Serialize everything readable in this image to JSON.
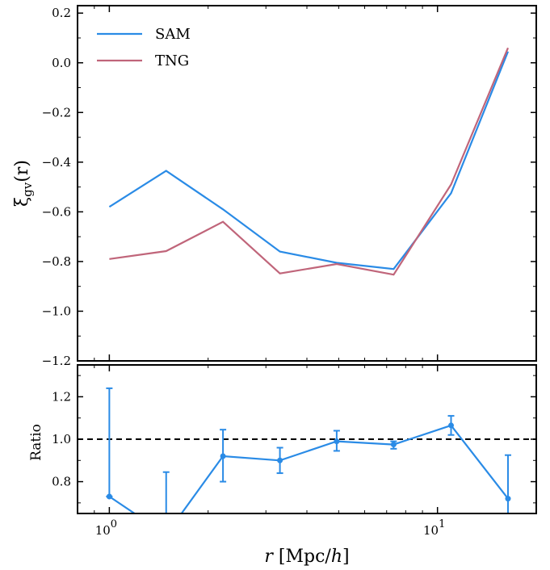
{
  "chart_data": [
    {
      "type": "line",
      "xscale": "log",
      "xlim": [
        0.8,
        20
      ],
      "ylim": [
        -1.2,
        0.23
      ],
      "ylabel": "ξgv(r)",
      "yticks": [
        "0.2",
        "0.0",
        "−0.2",
        "−0.4",
        "−0.6",
        "−0.8",
        "−1.0",
        "−1.2"
      ],
      "ytick_values": [
        0.2,
        0.0,
        -0.2,
        -0.4,
        -0.6,
        -0.8,
        -1.0,
        -1.2
      ],
      "legend_position": "top-left",
      "x": [
        1.0,
        1.49,
        2.22,
        3.31,
        4.93,
        7.35,
        11.0,
        16.4
      ],
      "series": [
        {
          "name": "SAM",
          "color": "#2a8be6",
          "values": [
            -0.58,
            -0.435,
            -0.59,
            -0.76,
            -0.805,
            -0.83,
            -0.525,
            0.045
          ]
        },
        {
          "name": "TNG",
          "color": "#c0657a",
          "values": [
            -0.79,
            -0.758,
            -0.64,
            -0.848,
            -0.81,
            -0.853,
            -0.49,
            0.06
          ]
        }
      ]
    },
    {
      "type": "line",
      "xscale": "log",
      "xlim": [
        0.8,
        20
      ],
      "ylim": [
        0.65,
        1.35
      ],
      "xlabel": "r [Mpc/h]",
      "ylabel": "Ratio",
      "yticks": [
        "1.2",
        "1.0",
        "0.8"
      ],
      "ytick_values": [
        1.2,
        1.0,
        0.8
      ],
      "xticks": [
        {
          "base": "10",
          "exp": "0",
          "value": 1
        },
        {
          "base": "10",
          "exp": "1",
          "value": 10
        }
      ],
      "reference_line": 1.0,
      "x": [
        1.0,
        1.49,
        2.22,
        3.31,
        4.93,
        7.35,
        11.0,
        16.4
      ],
      "series": [
        {
          "name": "",
          "color": "#2a8be6",
          "values": [
            0.73,
            0.55,
            0.92,
            0.9,
            0.99,
            0.975,
            1.065,
            0.72
          ],
          "err_low": [
            0.73,
            0.55,
            0.8,
            0.84,
            0.945,
            0.955,
            1.02,
            0.5
          ],
          "err_high": [
            1.24,
            0.845,
            1.045,
            0.96,
            1.04,
            0.99,
            1.11,
            0.925
          ]
        }
      ]
    }
  ]
}
